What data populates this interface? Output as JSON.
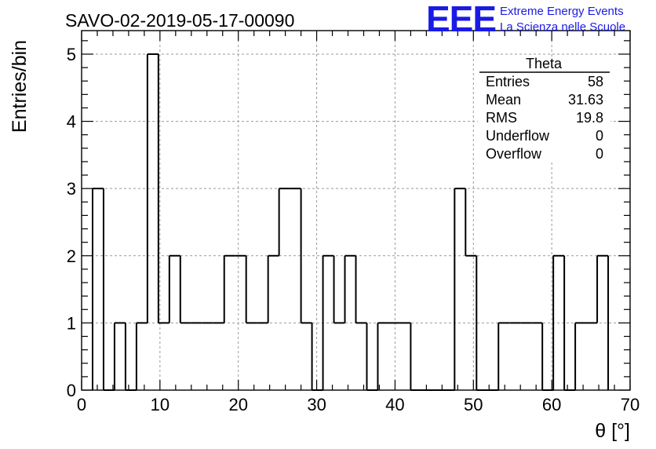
{
  "header": {
    "run_title": "SAVO-02-2019-05-17-00090",
    "logo_text": "EEE",
    "logo_line1": "Extreme Energy Events",
    "logo_line2": "La Scienza nelle Scuole",
    "logo_color": "#1a1ae6"
  },
  "stats_box": {
    "title": "Theta",
    "rows": [
      {
        "label": "Entries",
        "value": "58"
      },
      {
        "label": "Mean",
        "value": "31.63"
      },
      {
        "label": "RMS",
        "value": "19.8"
      },
      {
        "label": "Underflow",
        "value": "0"
      },
      {
        "label": "Overflow",
        "value": "0"
      }
    ]
  },
  "chart_data": {
    "type": "histogram",
    "xlabel": "θ [°]",
    "ylabel": "Entries/bin",
    "xlim": [
      0,
      70
    ],
    "ylim": [
      0,
      5.35
    ],
    "bin_width": 1.4,
    "x_ticks": [
      0,
      10,
      20,
      30,
      40,
      50,
      60,
      70
    ],
    "y_ticks": [
      0,
      1,
      2,
      3,
      4,
      5
    ],
    "grid": true,
    "line_color": "#000000",
    "series": [
      {
        "bin_edges": [
          1.4,
          2.8,
          4.2,
          5.6,
          7.0,
          8.4,
          9.8,
          11.2,
          12.6,
          14.0,
          15.4,
          16.8,
          18.2,
          19.6,
          21.0,
          22.4,
          23.8,
          25.2,
          26.6,
          28.0,
          29.4,
          30.8,
          32.2,
          33.6,
          35.0,
          36.4,
          37.8,
          39.2,
          40.6,
          42.0,
          43.4,
          44.8,
          46.2,
          47.6,
          49.0,
          50.4,
          51.8,
          53.2,
          54.6,
          56.0,
          57.4,
          58.8,
          60.2,
          61.6,
          63.0,
          64.4,
          65.8,
          67.2
        ],
        "counts": [
          3,
          0,
          1,
          0,
          1,
          5,
          1,
          2,
          1,
          1,
          1,
          1,
          2,
          2,
          1,
          1,
          2,
          3,
          3,
          1,
          0,
          2,
          1,
          2,
          1,
          0,
          1,
          1,
          1,
          0,
          0,
          0,
          0,
          3,
          2,
          0,
          0,
          1,
          1,
          1,
          1,
          0,
          2,
          0,
          1,
          1,
          2
        ]
      }
    ]
  }
}
